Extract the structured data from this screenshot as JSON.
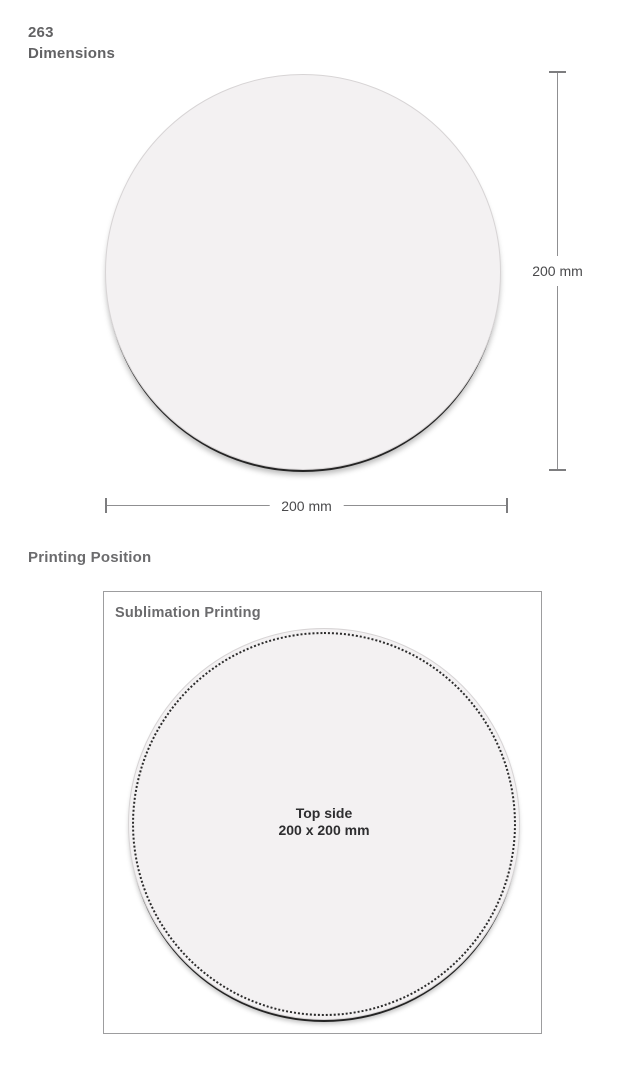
{
  "header": {
    "product_code": "263",
    "section_label": "Dimensions"
  },
  "dimensions_diagram": {
    "height_label": "200 mm",
    "width_label": "200 mm"
  },
  "printing": {
    "section_label": "Printing Position",
    "method_label": "Sublimation Printing",
    "print_area": {
      "line1": "Top side",
      "line2": "200 x 200 mm"
    }
  },
  "colors": {
    "heading_gray": "#6b6b6d",
    "dimension_text": "#4a4a4c",
    "dimension_line": "#8f8f91",
    "pad_fill": "#f3f1f2",
    "pad_edge": "#d7d4d5",
    "pad_base_dark": "#242424",
    "box_border": "#9d9d9f",
    "print_area_text": "#2e2e30",
    "dotted_line": "#2b2b2b"
  }
}
